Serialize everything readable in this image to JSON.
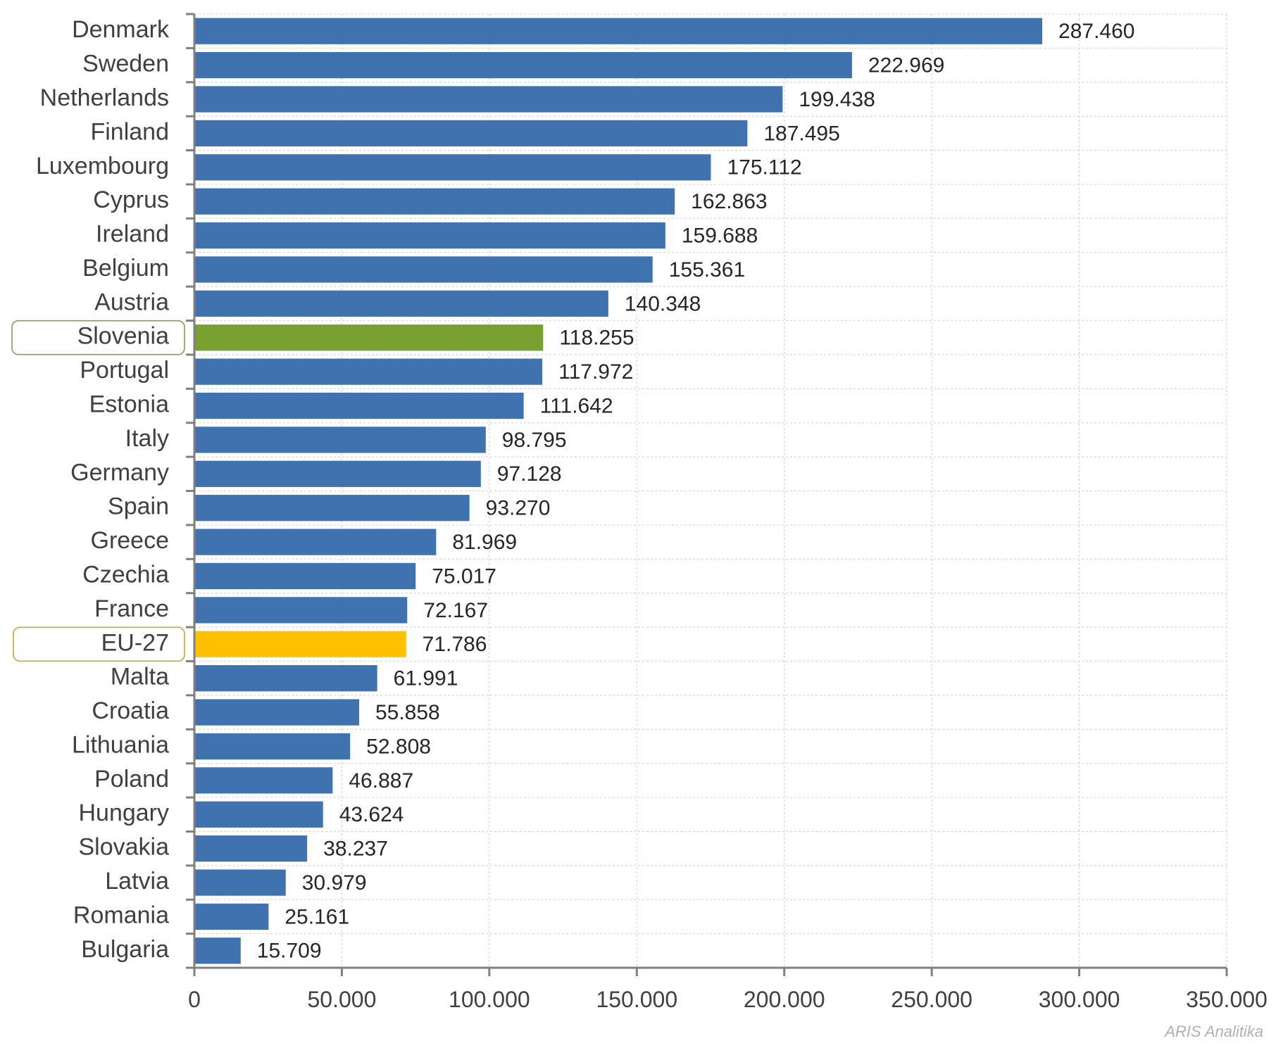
{
  "colors": {
    "bar": "#3F72AF",
    "highlight_green": "#77A030",
    "highlight_yellow": "#FFC000",
    "box_green": "#8A9A55",
    "box_yellow": "#C9A43A",
    "grid": "#d9d9d9",
    "axis": "#808080"
  },
  "credit": "ARIS Analitika",
  "chart_data": {
    "type": "bar",
    "orientation": "horizontal",
    "categories": [
      "Denmark",
      "Sweden",
      "Netherlands",
      "Finland",
      "Luxembourg",
      "Cyprus",
      "Ireland",
      "Belgium",
      "Austria",
      "Slovenia",
      "Portugal",
      "Estonia",
      "Italy",
      "Germany",
      "Spain",
      "Greece",
      "Czechia",
      "France",
      "EU-27",
      "Malta",
      "Croatia",
      "Lithuania",
      "Poland",
      "Hungary",
      "Slovakia",
      "Latvia",
      "Romania",
      "Bulgaria"
    ],
    "values": [
      287460,
      222969,
      199438,
      187495,
      175112,
      162863,
      159688,
      155361,
      140348,
      118255,
      117972,
      111642,
      98795,
      97128,
      93270,
      81969,
      75017,
      72167,
      71786,
      61991,
      55858,
      52808,
      46887,
      43624,
      38237,
      30979,
      25161,
      15709
    ],
    "value_labels": [
      "287.460",
      "222.969",
      "199.438",
      "187.495",
      "175.112",
      "162.863",
      "159.688",
      "155.361",
      "140.348",
      "118.255",
      "117.972",
      "111.642",
      "98.795",
      "97.128",
      "93.270",
      "81.969",
      "75.017",
      "72.167",
      "71.786",
      "61.991",
      "55.858",
      "52.808",
      "46.887",
      "43.624",
      "38.237",
      "30.979",
      "25.161",
      "15.709"
    ],
    "highlights": {
      "Slovenia": "green",
      "EU-27": "yellow"
    },
    "xlim": [
      0,
      350000
    ],
    "x_ticks": [
      0,
      50000,
      100000,
      150000,
      200000,
      250000,
      300000,
      350000
    ],
    "x_tick_labels": [
      "0",
      "50.000",
      "100.000",
      "150.000",
      "200.000",
      "250.000",
      "300.000",
      "350.000"
    ],
    "grid": true,
    "title": "",
    "xlabel": "",
    "ylabel": ""
  }
}
